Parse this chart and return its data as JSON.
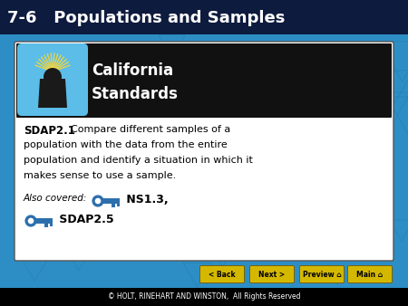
{
  "title": "7-6   Populations and Samples",
  "title_fontsize": 13,
  "title_color": "#ffffff",
  "title_bg_color": "#0d1b3e",
  "bg_color": "#2d8ec5",
  "card_bg": "#ffffff",
  "card_border": "#555555",
  "header_bg": "#111111",
  "cal_title_color": "#ffffff",
  "cal_title_fontsize": 12,
  "key_color": "#2d6fad",
  "footer_text": "© HOLT, RINEHART AND WINSTON,  All Rights Reserved",
  "footer_color": "#ffffff",
  "footer_fontsize": 5.5,
  "btn_color": "#d4b800",
  "btn_labels": [
    "< Back",
    "Next >",
    "Preview  ⌂",
    "Main  ⌂"
  ],
  "triangle_color": "#1a6fa0",
  "icon_bg_color": "#5bbde8",
  "sun_color": "#e8d44d",
  "bear_color": "#1a1a1a"
}
